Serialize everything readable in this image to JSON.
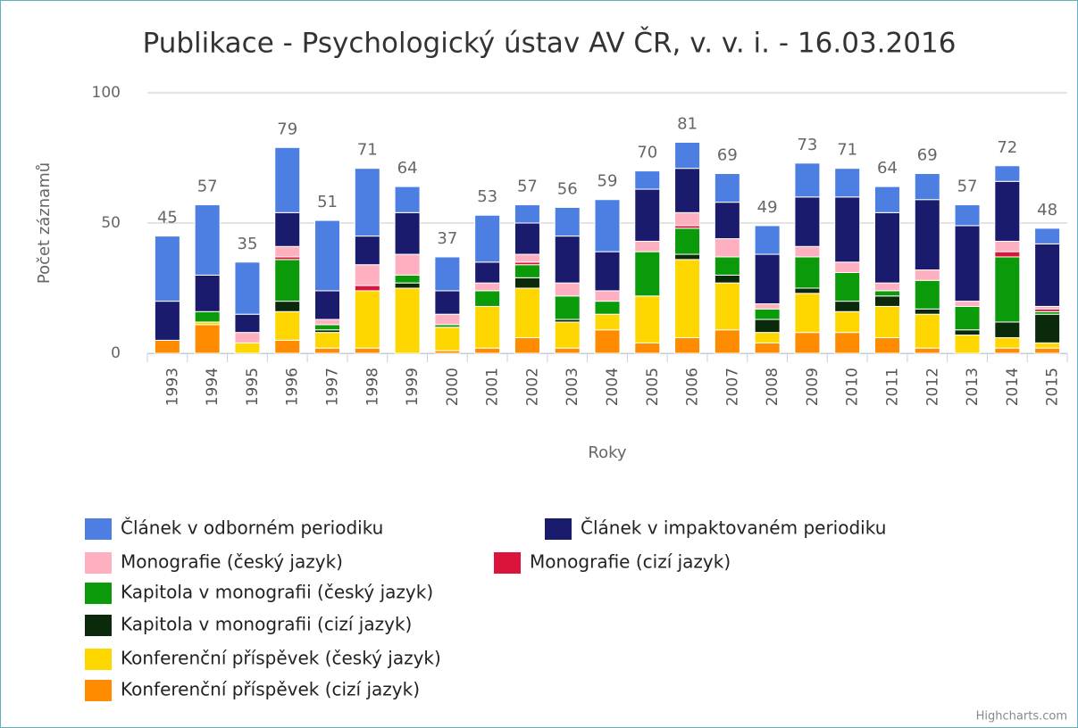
{
  "chart_data": {
    "type": "stacked_bar",
    "title": "Publikace - Psychologický ústav AV ČR, v. v. i. - 16.03.2016",
    "y_label": "Počet záznamů",
    "x_label": "Roky",
    "credits": "Highcharts.com",
    "categories": [
      "1993",
      "1994",
      "1995",
      "1996",
      "1997",
      "1998",
      "1999",
      "2000",
      "2001",
      "2002",
      "2003",
      "2004",
      "2005",
      "2006",
      "2007",
      "2008",
      "2009",
      "2010",
      "2011",
      "2012",
      "2013",
      "2014",
      "2015"
    ],
    "ylim": [
      0,
      100
    ],
    "yticks": [
      0,
      50,
      100
    ],
    "grid": true,
    "stack_totals": [
      45,
      57,
      35,
      79,
      51,
      71,
      64,
      37,
      53,
      57,
      56,
      59,
      70,
      81,
      69,
      49,
      73,
      71,
      64,
      69,
      57,
      72,
      48
    ],
    "series": [
      {
        "name": "Konferenční příspěvek (cizí jazyk)",
        "color": "#ff8c00",
        "values": [
          5,
          11,
          0,
          5,
          2,
          2,
          0,
          1,
          2,
          6,
          2,
          9,
          4,
          6,
          9,
          4,
          8,
          8,
          6,
          2,
          0,
          2,
          2
        ]
      },
      {
        "name": "Konferenční příspěvek (český jazyk)",
        "color": "#ffd700",
        "values": [
          0,
          1,
          4,
          11,
          6,
          22,
          25,
          9,
          16,
          19,
          10,
          6,
          18,
          30,
          18,
          4,
          15,
          8,
          12,
          13,
          7,
          4,
          2
        ]
      },
      {
        "name": "Kapitola v monografii (cizí jazyk)",
        "color": "#0b2a0b",
        "values": [
          0,
          0,
          0,
          4,
          1,
          0,
          2,
          0,
          0,
          4,
          1,
          0,
          0,
          2,
          3,
          5,
          2,
          4,
          4,
          2,
          2,
          6,
          11
        ]
      },
      {
        "name": "Kapitola v monografii (český jazyk)",
        "color": "#0a9a0a",
        "values": [
          0,
          4,
          0,
          16,
          2,
          0,
          3,
          1,
          6,
          5,
          9,
          5,
          17,
          10,
          7,
          4,
          12,
          11,
          2,
          11,
          9,
          25,
          1
        ]
      },
      {
        "name": "Monografie (cizí jazyk)",
        "color": "#dc143c",
        "values": [
          0,
          0,
          0,
          1,
          0,
          2,
          0,
          0,
          0,
          1,
          0,
          0,
          0,
          1,
          0,
          0,
          0,
          0,
          0,
          0,
          0,
          2,
          1
        ]
      },
      {
        "name": "Monografie (český jazyk)",
        "color": "#ffb0c0",
        "values": [
          0,
          0,
          4,
          4,
          2,
          8,
          8,
          4,
          3,
          3,
          5,
          4,
          4,
          5,
          7,
          2,
          4,
          4,
          3,
          4,
          2,
          4,
          1
        ]
      },
      {
        "name": "Článek v impaktovaném periodiku",
        "color": "#1b1b6e",
        "values": [
          15,
          14,
          7,
          13,
          11,
          11,
          16,
          9,
          8,
          12,
          18,
          15,
          20,
          17,
          14,
          19,
          19,
          25,
          27,
          27,
          29,
          23,
          24
        ]
      },
      {
        "name": "Článek v odborném periodiku",
        "color": "#4d7fe3",
        "values": [
          25,
          27,
          20,
          25,
          27,
          26,
          10,
          13,
          18,
          7,
          11,
          20,
          7,
          10,
          11,
          11,
          13,
          11,
          10,
          10,
          8,
          6,
          6
        ]
      }
    ]
  }
}
